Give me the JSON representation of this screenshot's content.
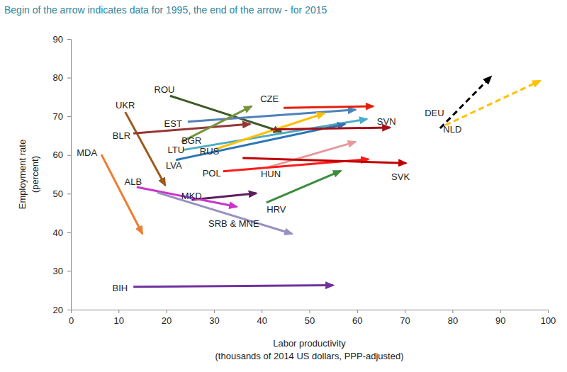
{
  "chart_data": {
    "type": "arrow",
    "title": "Begin of the arrow indicates data for 1995, the end of the arrow - for 2015",
    "xlabel": [
      "Labor productivity",
      "(thousands of 2014 US dollars, PPP-adjusted)"
    ],
    "ylabel": [
      "Employment rate",
      "(percent)"
    ],
    "xlim": [
      0,
      100
    ],
    "ylim": [
      20,
      90
    ],
    "xticks": [
      0,
      10,
      20,
      30,
      40,
      50,
      60,
      70,
      80,
      90,
      100
    ],
    "yticks": [
      20,
      30,
      40,
      50,
      60,
      70,
      80,
      90
    ],
    "grid": false,
    "series": [
      {
        "name": "MDA",
        "color": "#ED7D31",
        "x": [
          6.4,
          15.0
        ],
        "values": [
          60.1,
          39.6
        ],
        "line_style": "solid"
      },
      {
        "name": "UKR",
        "color": "#9C5B1A",
        "x": [
          11.4,
          19.8
        ],
        "values": [
          71.1,
          52.1
        ],
        "line_style": "solid"
      },
      {
        "name": "BLR",
        "color": "#953735",
        "x": [
          13.1,
          37.6
        ],
        "values": [
          65.6,
          68.0
        ],
        "line_style": "solid"
      },
      {
        "name": "ROU",
        "color": "#3F5A28",
        "x": [
          20.8,
          44.1
        ],
        "values": [
          75.3,
          66.0
        ],
        "line_style": "solid"
      },
      {
        "name": "EST",
        "color": "#4F81BD",
        "x": [
          24.5,
          59.7
        ],
        "values": [
          68.6,
          71.7
        ],
        "line_style": "solid"
      },
      {
        "name": "BGR",
        "color": "#77933C",
        "x": [
          23.2,
          37.9
        ],
        "values": [
          63.4,
          72.6
        ],
        "line_style": "solid"
      },
      {
        "name": "LTU",
        "color": "#4BACC6",
        "x": [
          23.5,
          62.1
        ],
        "values": [
          61.3,
          69.3
        ],
        "line_style": "solid"
      },
      {
        "name": "LVA",
        "color": "#2E75B6",
        "x": [
          22.0,
          57.5
        ],
        "values": [
          58.7,
          68.0
        ],
        "line_style": "solid"
      },
      {
        "name": "RUS",
        "color": "#FFC000",
        "x": [
          30.5,
          53.2
        ],
        "values": [
          61.6,
          70.8
        ],
        "line_style": "solid"
      },
      {
        "name": "CZE",
        "color": "#E3200B",
        "x": [
          44.6,
          63.4
        ],
        "values": [
          72.2,
          72.6
        ],
        "line_style": "solid"
      },
      {
        "name": "SVN",
        "color": "#A50F15",
        "x": [
          41.9,
          66.9
        ],
        "values": [
          66.6,
          67.1
        ],
        "line_style": "solid"
      },
      {
        "name": "HUN",
        "color": "#E6999A",
        "x": [
          41.3,
          59.7
        ],
        "values": [
          56.8,
          63.4
        ],
        "line_style": "solid"
      },
      {
        "name": "POL",
        "color": "#FF1A1A",
        "x": [
          31.9,
          62.4
        ],
        "values": [
          55.8,
          58.9
        ],
        "line_style": "solid"
      },
      {
        "name": "SVK",
        "color": "#C00000",
        "x": [
          36.0,
          70.3
        ],
        "values": [
          59.2,
          57.9
        ],
        "line_style": "solid"
      },
      {
        "name": "HRV",
        "color": "#3C8C3C",
        "x": [
          41.0,
          56.6
        ],
        "values": [
          47.7,
          55.9
        ],
        "line_style": "solid"
      },
      {
        "name": "MKD",
        "color": "#5B1E5E",
        "x": [
          25.3,
          38.9
        ],
        "values": [
          48.4,
          50.1
        ],
        "line_style": "solid"
      },
      {
        "name": "ALB",
        "color": "#CC33CC",
        "x": [
          13.8,
          34.8
        ],
        "values": [
          51.7,
          46.6
        ],
        "line_style": "solid"
      },
      {
        "name": "SRB & MNE",
        "color": "#9990C0",
        "x": [
          18.1,
          46.4
        ],
        "values": [
          50.3,
          39.6
        ],
        "line_style": "solid"
      },
      {
        "name": "BIH",
        "color": "#7030A0",
        "x": [
          13.1,
          55.0
        ],
        "values": [
          25.9,
          26.3
        ],
        "line_style": "solid"
      },
      {
        "name": "DEU",
        "color": "#000000",
        "x": [
          77.4,
          88.1
        ],
        "values": [
          66.9,
          80.3
        ],
        "line_style": "dashed"
      },
      {
        "name": "NLD",
        "color": "#FFC000",
        "x": [
          78.5,
          98.4
        ],
        "values": [
          67.7,
          79.2
        ],
        "line_style": "dashed"
      }
    ]
  }
}
